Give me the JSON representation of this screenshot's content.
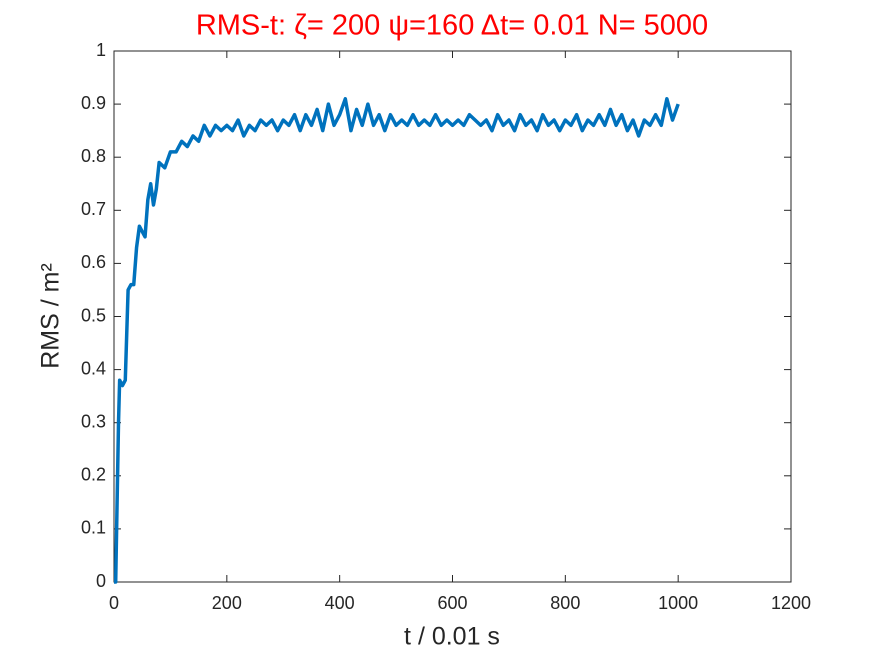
{
  "chart_data": {
    "type": "line",
    "title": "RMS-t:  ζ= 200 ψ=160 Δt= 0.01 N= 5000",
    "title_color": "#ff0000",
    "x_label": "t / 0.01 s",
    "y_label": "RMS / m²",
    "xlim": [
      0,
      1200
    ],
    "xticks": [
      0,
      200,
      400,
      600,
      800,
      1000,
      1200
    ],
    "ylim": [
      0,
      1
    ],
    "yticks": [
      0,
      0.1,
      0.2,
      0.3,
      0.4,
      0.5,
      0.6,
      0.7,
      0.8,
      0.9,
      1
    ],
    "grid": false,
    "x": [
      0,
      3,
      8,
      10,
      15,
      20,
      25,
      30,
      35,
      40,
      45,
      50,
      55,
      60,
      65,
      70,
      75,
      80,
      90,
      100,
      110,
      120,
      130,
      140,
      150,
      160,
      170,
      180,
      190,
      200,
      210,
      220,
      230,
      240,
      250,
      260,
      270,
      280,
      290,
      300,
      310,
      320,
      330,
      340,
      350,
      360,
      370,
      380,
      390,
      400,
      410,
      420,
      430,
      440,
      450,
      460,
      470,
      480,
      490,
      500,
      510,
      520,
      530,
      540,
      550,
      560,
      570,
      580,
      590,
      600,
      610,
      620,
      630,
      640,
      650,
      660,
      670,
      680,
      690,
      700,
      710,
      720,
      730,
      740,
      750,
      760,
      770,
      780,
      790,
      800,
      810,
      820,
      830,
      840,
      850,
      860,
      870,
      880,
      890,
      900,
      910,
      920,
      930,
      940,
      950,
      960,
      970,
      980,
      990,
      1000
    ],
    "series": [
      {
        "name": "RMS",
        "color": "#0072bd",
        "values": [
          0,
          0,
          0.3,
          0.38,
          0.37,
          0.38,
          0.55,
          0.56,
          0.56,
          0.63,
          0.67,
          0.66,
          0.65,
          0.72,
          0.75,
          0.71,
          0.74,
          0.79,
          0.78,
          0.81,
          0.81,
          0.83,
          0.82,
          0.84,
          0.83,
          0.86,
          0.84,
          0.86,
          0.85,
          0.86,
          0.85,
          0.87,
          0.84,
          0.86,
          0.85,
          0.87,
          0.86,
          0.87,
          0.85,
          0.87,
          0.86,
          0.88,
          0.85,
          0.88,
          0.86,
          0.89,
          0.85,
          0.9,
          0.86,
          0.88,
          0.91,
          0.85,
          0.89,
          0.86,
          0.9,
          0.86,
          0.88,
          0.85,
          0.88,
          0.86,
          0.87,
          0.86,
          0.88,
          0.86,
          0.87,
          0.86,
          0.88,
          0.86,
          0.87,
          0.86,
          0.87,
          0.86,
          0.88,
          0.87,
          0.86,
          0.87,
          0.85,
          0.88,
          0.86,
          0.87,
          0.85,
          0.88,
          0.86,
          0.87,
          0.85,
          0.88,
          0.86,
          0.87,
          0.85,
          0.87,
          0.86,
          0.88,
          0.85,
          0.87,
          0.86,
          0.88,
          0.86,
          0.89,
          0.86,
          0.88,
          0.85,
          0.87,
          0.84,
          0.87,
          0.86,
          0.88,
          0.86,
          0.91,
          0.87,
          0.9
        ]
      }
    ]
  }
}
